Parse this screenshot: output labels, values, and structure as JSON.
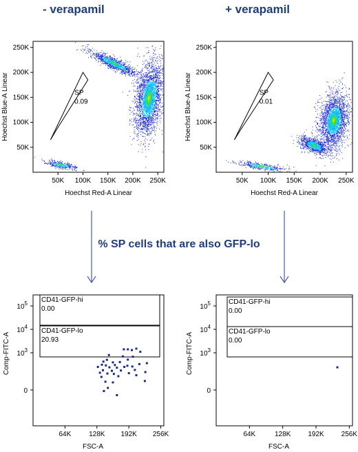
{
  "headers": {
    "left": "- verapamil",
    "right": "+ verapamil",
    "middle": "% SP cells that are also GFP-lo"
  },
  "colors": {
    "header": "#1f3d7a",
    "arrow": "#4a5aa8",
    "dots": "#1a2a8a",
    "density_low": "#1a2ad0",
    "density_mid": "#00c8ff",
    "density_high": "#33dd33",
    "density_peak": "#ffee00"
  },
  "chart_data": [
    {
      "id": "top-left",
      "type": "scatter",
      "title": "",
      "xlabel": "Hoechst Red-A Linear",
      "ylabel": "Hoechst Blue-A Linear",
      "xlim": [
        0,
        262144
      ],
      "ylim": [
        0,
        262144
      ],
      "xticks": [
        {
          "v": 50000,
          "label": "50K"
        },
        {
          "v": 100000,
          "label": "100K"
        },
        {
          "v": 150000,
          "label": "150K"
        },
        {
          "v": 200000,
          "label": "200K"
        },
        {
          "v": 250000,
          "label": "250K"
        }
      ],
      "yticks": [
        {
          "v": 50000,
          "label": "50K"
        },
        {
          "v": 100000,
          "label": "100K"
        },
        {
          "v": 150000,
          "label": "150K"
        },
        {
          "v": 200000,
          "label": "200K"
        },
        {
          "v": 250000,
          "label": "250K"
        }
      ],
      "gate": {
        "name": "SP",
        "value": "0.09",
        "polygon": [
          [
            35000,
            65000
          ],
          [
            100000,
            200000
          ],
          [
            110000,
            185000
          ],
          [
            45000,
            82000
          ]
        ]
      },
      "clusters": [
        {
          "cx": 232000,
          "cy": 148000,
          "sx": 26000,
          "sy": 78000,
          "rot": 0.55,
          "n": 2600,
          "peak": 0.95
        },
        {
          "cx": 162000,
          "cy": 218000,
          "sx": 48000,
          "sy": 9000,
          "rot": 0.45,
          "n": 1000,
          "peak": 0.75
        },
        {
          "cx": 56000,
          "cy": 15000,
          "sx": 28000,
          "sy": 6000,
          "rot": 0.2,
          "n": 320,
          "peak": 0.2
        }
      ]
    },
    {
      "id": "top-right",
      "type": "scatter",
      "title": "",
      "xlabel": "Hoechst Red-A Linear",
      "ylabel": "Hoechst Blue-A Linear",
      "xlim": [
        0,
        262144
      ],
      "ylim": [
        0,
        262144
      ],
      "xticks": [
        {
          "v": 50000,
          "label": "50K"
        },
        {
          "v": 100000,
          "label": "100K"
        },
        {
          "v": 150000,
          "label": "150K"
        },
        {
          "v": 200000,
          "label": "200K"
        },
        {
          "v": 250000,
          "label": "250K"
        }
      ],
      "yticks": [
        {
          "v": 50000,
          "label": "50K"
        },
        {
          "v": 100000,
          "label": "100K"
        },
        {
          "v": 150000,
          "label": "150K"
        },
        {
          "v": 200000,
          "label": "200K"
        },
        {
          "v": 250000,
          "label": "250K"
        }
      ],
      "gate": {
        "name": "SP",
        "value": "0.01",
        "polygon": [
          [
            35000,
            65000
          ],
          [
            100000,
            200000
          ],
          [
            110000,
            185000
          ],
          [
            45000,
            82000
          ]
        ]
      },
      "clusters": [
        {
          "cx": 226000,
          "cy": 104000,
          "sx": 28000,
          "sy": 62000,
          "rot": 0.75,
          "n": 2300,
          "peak": 0.9
        },
        {
          "cx": 188000,
          "cy": 54000,
          "sx": 26000,
          "sy": 12000,
          "rot": 0.4,
          "n": 900,
          "peak": 0.7
        },
        {
          "cx": 88000,
          "cy": 12000,
          "sx": 45000,
          "sy": 6000,
          "rot": 0.15,
          "n": 380,
          "peak": 0.2
        }
      ]
    },
    {
      "id": "bottom-left",
      "type": "scatter",
      "title": "",
      "xlabel": "FSC-A",
      "ylabel": "Comp-FITC-A",
      "xlim": [
        0,
        262144
      ],
      "yscale": "biexponential",
      "xticks": [
        {
          "v": 64000,
          "label": "64K"
        },
        {
          "v": 128000,
          "label": "128K"
        },
        {
          "v": 192000,
          "label": "192K"
        },
        {
          "v": 256000,
          "label": "256K"
        }
      ],
      "yticks": [
        {
          "label": "0",
          "y": 566,
          "base": "",
          "exp": ""
        },
        {
          "label": "10^3",
          "y": 512,
          "base": "10",
          "exp": "3"
        },
        {
          "label": "10^4",
          "y": 478,
          "base": "10",
          "exp": "4"
        },
        {
          "label": "10^5",
          "y": 444,
          "base": "10",
          "exp": "5"
        }
      ],
      "gates": [
        {
          "name": "CD41-GFP-hi",
          "value": "0.00"
        },
        {
          "name": "CD41-GFP-lo",
          "value": "20.93"
        }
      ],
      "points": [
        [
          182000,
          1400
        ],
        [
          190000,
          1400
        ],
        [
          207000,
          1500
        ],
        [
          198000,
          1300
        ],
        [
          215000,
          1100
        ],
        [
          152000,
          800
        ],
        [
          180000,
          700
        ],
        [
          200000,
          680
        ],
        [
          148000,
          500
        ],
        [
          190000,
          510
        ],
        [
          228000,
          360
        ],
        [
          141000,
          420
        ],
        [
          160000,
          390
        ],
        [
          174000,
          400
        ],
        [
          213000,
          330
        ],
        [
          138000,
          310
        ],
        [
          146000,
          290
        ],
        [
          164000,
          300
        ],
        [
          189000,
          280
        ],
        [
          199000,
          260
        ],
        [
          130000,
          250
        ],
        [
          153000,
          240
        ],
        [
          168000,
          230
        ],
        [
          183000,
          250
        ],
        [
          140000,
          180
        ],
        [
          158000,
          170
        ],
        [
          176000,
          175
        ],
        [
          204000,
          185
        ],
        [
          134000,
          140
        ],
        [
          149000,
          130
        ],
        [
          162000,
          125
        ],
        [
          192000,
          135
        ],
        [
          225000,
          150
        ],
        [
          137000,
          95
        ],
        [
          171000,
          100
        ],
        [
          207000,
          110
        ],
        [
          145000,
          60
        ],
        [
          160000,
          55
        ],
        [
          224000,
          65
        ],
        [
          150000,
          15
        ],
        [
          142000,
          -5
        ],
        [
          168000,
          -25
        ]
      ]
    },
    {
      "id": "bottom-right",
      "type": "scatter",
      "title": "",
      "xlabel": "FSC-A",
      "ylabel": "Comp-FITC-A",
      "xlim": [
        0,
        262144
      ],
      "yscale": "biexponential",
      "xticks": [
        {
          "v": 64000,
          "label": "64K"
        },
        {
          "v": 128000,
          "label": "128K"
        },
        {
          "v": 192000,
          "label": "192K"
        },
        {
          "v": 256000,
          "label": "256K"
        }
      ],
      "yticks": [
        {
          "label": "0",
          "y": 566,
          "base": "",
          "exp": ""
        },
        {
          "label": "10^3",
          "y": 512,
          "base": "10",
          "exp": "3"
        },
        {
          "label": "10^4",
          "y": 478,
          "base": "10",
          "exp": "4"
        },
        {
          "label": "10^5",
          "y": 444,
          "base": "10",
          "exp": "5"
        }
      ],
      "gates": [
        {
          "name": "CD41-GFP-hi",
          "value": "0.00"
        },
        {
          "name": "CD41-GFP-lo",
          "value": "0.00"
        }
      ],
      "points": [
        [
          233000,
          240
        ]
      ]
    }
  ]
}
